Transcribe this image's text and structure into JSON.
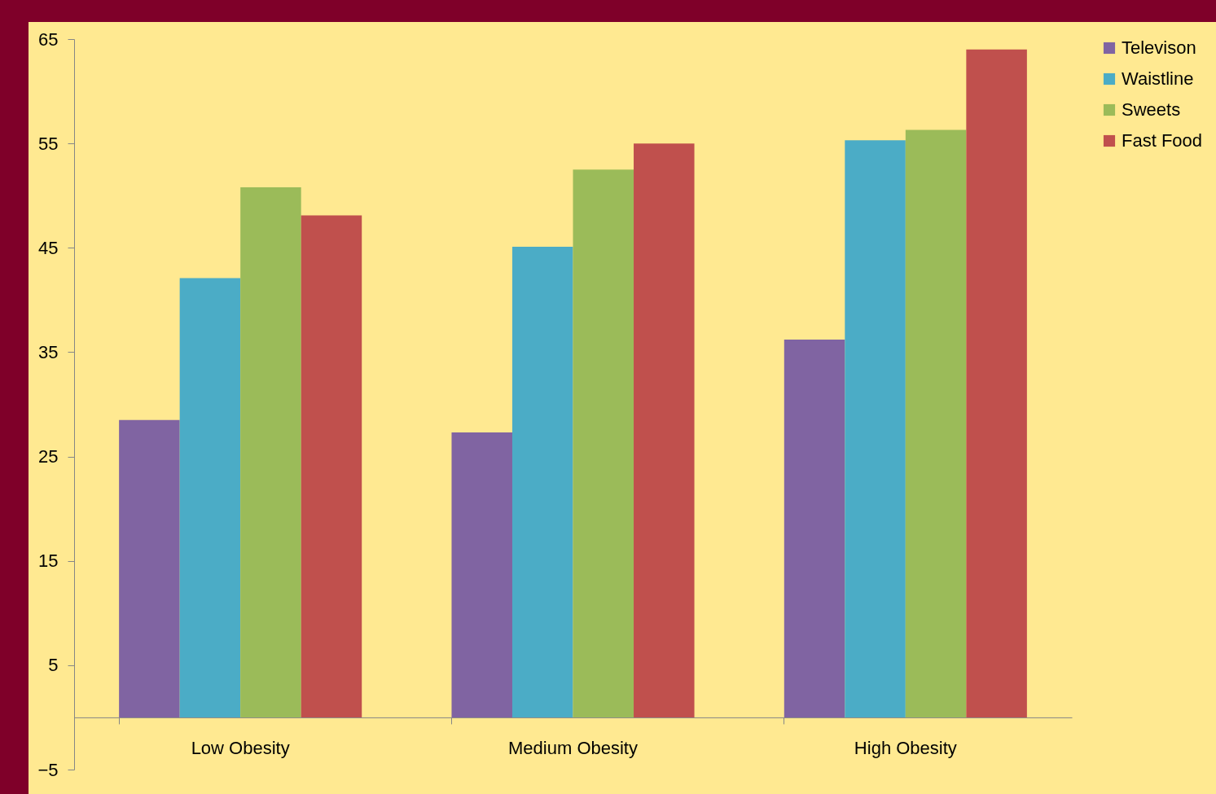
{
  "chart_data": {
    "type": "bar",
    "categories": [
      "Low Obesity",
      "Medium Obesity",
      "High Obesity"
    ],
    "series": [
      {
        "name": "Televison",
        "color": "#8064a2",
        "values": [
          28.5,
          27.3,
          36.2
        ]
      },
      {
        "name": "Waistline",
        "color": "#4bacc6",
        "values": [
          42.1,
          45.1,
          55.3
        ]
      },
      {
        "name": "Sweets",
        "color": "#9bbb59",
        "values": [
          50.8,
          52.5,
          56.3
        ]
      },
      {
        "name": "Fast Food",
        "color": "#c0504d",
        "values": [
          48.1,
          55,
          64
        ]
      }
    ],
    "ylim": [
      -5,
      65
    ],
    "yticks": [
      -5,
      5,
      15,
      25,
      35,
      45,
      55,
      65
    ],
    "legend": "right"
  }
}
